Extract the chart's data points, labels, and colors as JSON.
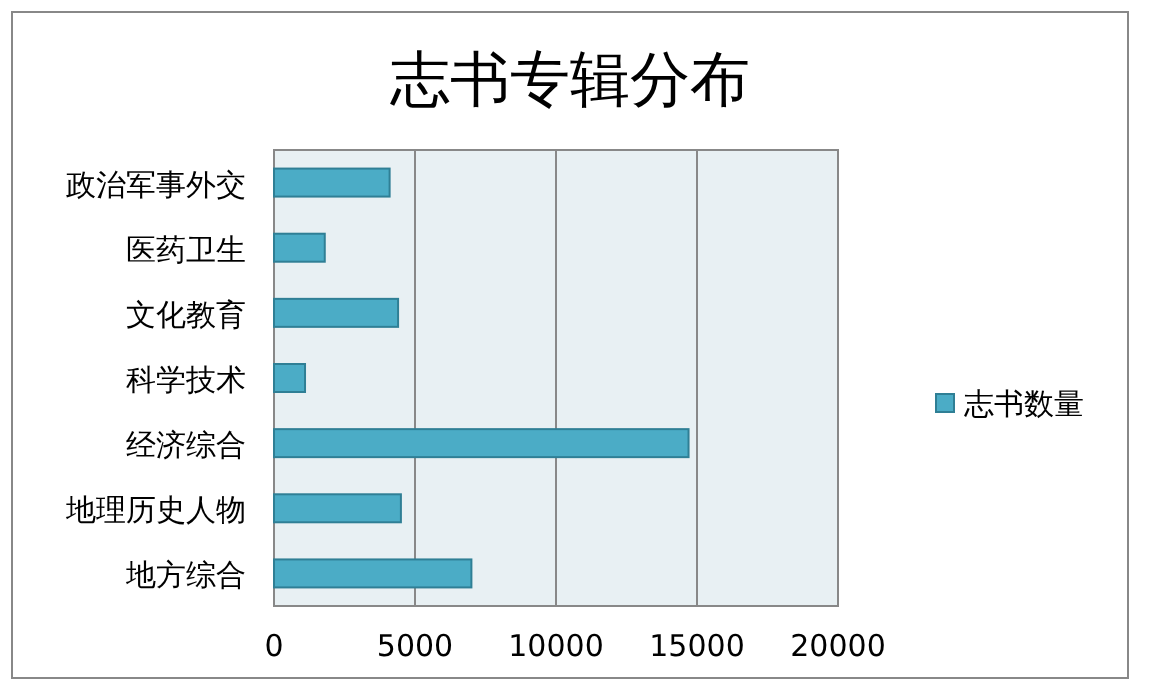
{
  "chart_data": {
    "type": "bar",
    "orientation": "horizontal",
    "title": "志书专辑分布",
    "categories": [
      "政治军事外交",
      "医药卫生",
      "文化教育",
      "科学技术",
      "经济综合",
      "地理历史人物",
      "地方综合"
    ],
    "series": [
      {
        "name": "志书数量",
        "color": "#4bacc6",
        "values": [
          4100,
          1800,
          4400,
          1100,
          14700,
          4500,
          7000
        ]
      }
    ],
    "xlim": [
      0,
      20000
    ],
    "xticks": [
      0,
      5000,
      10000,
      15000,
      20000
    ],
    "grid": "x",
    "legend": "right"
  }
}
